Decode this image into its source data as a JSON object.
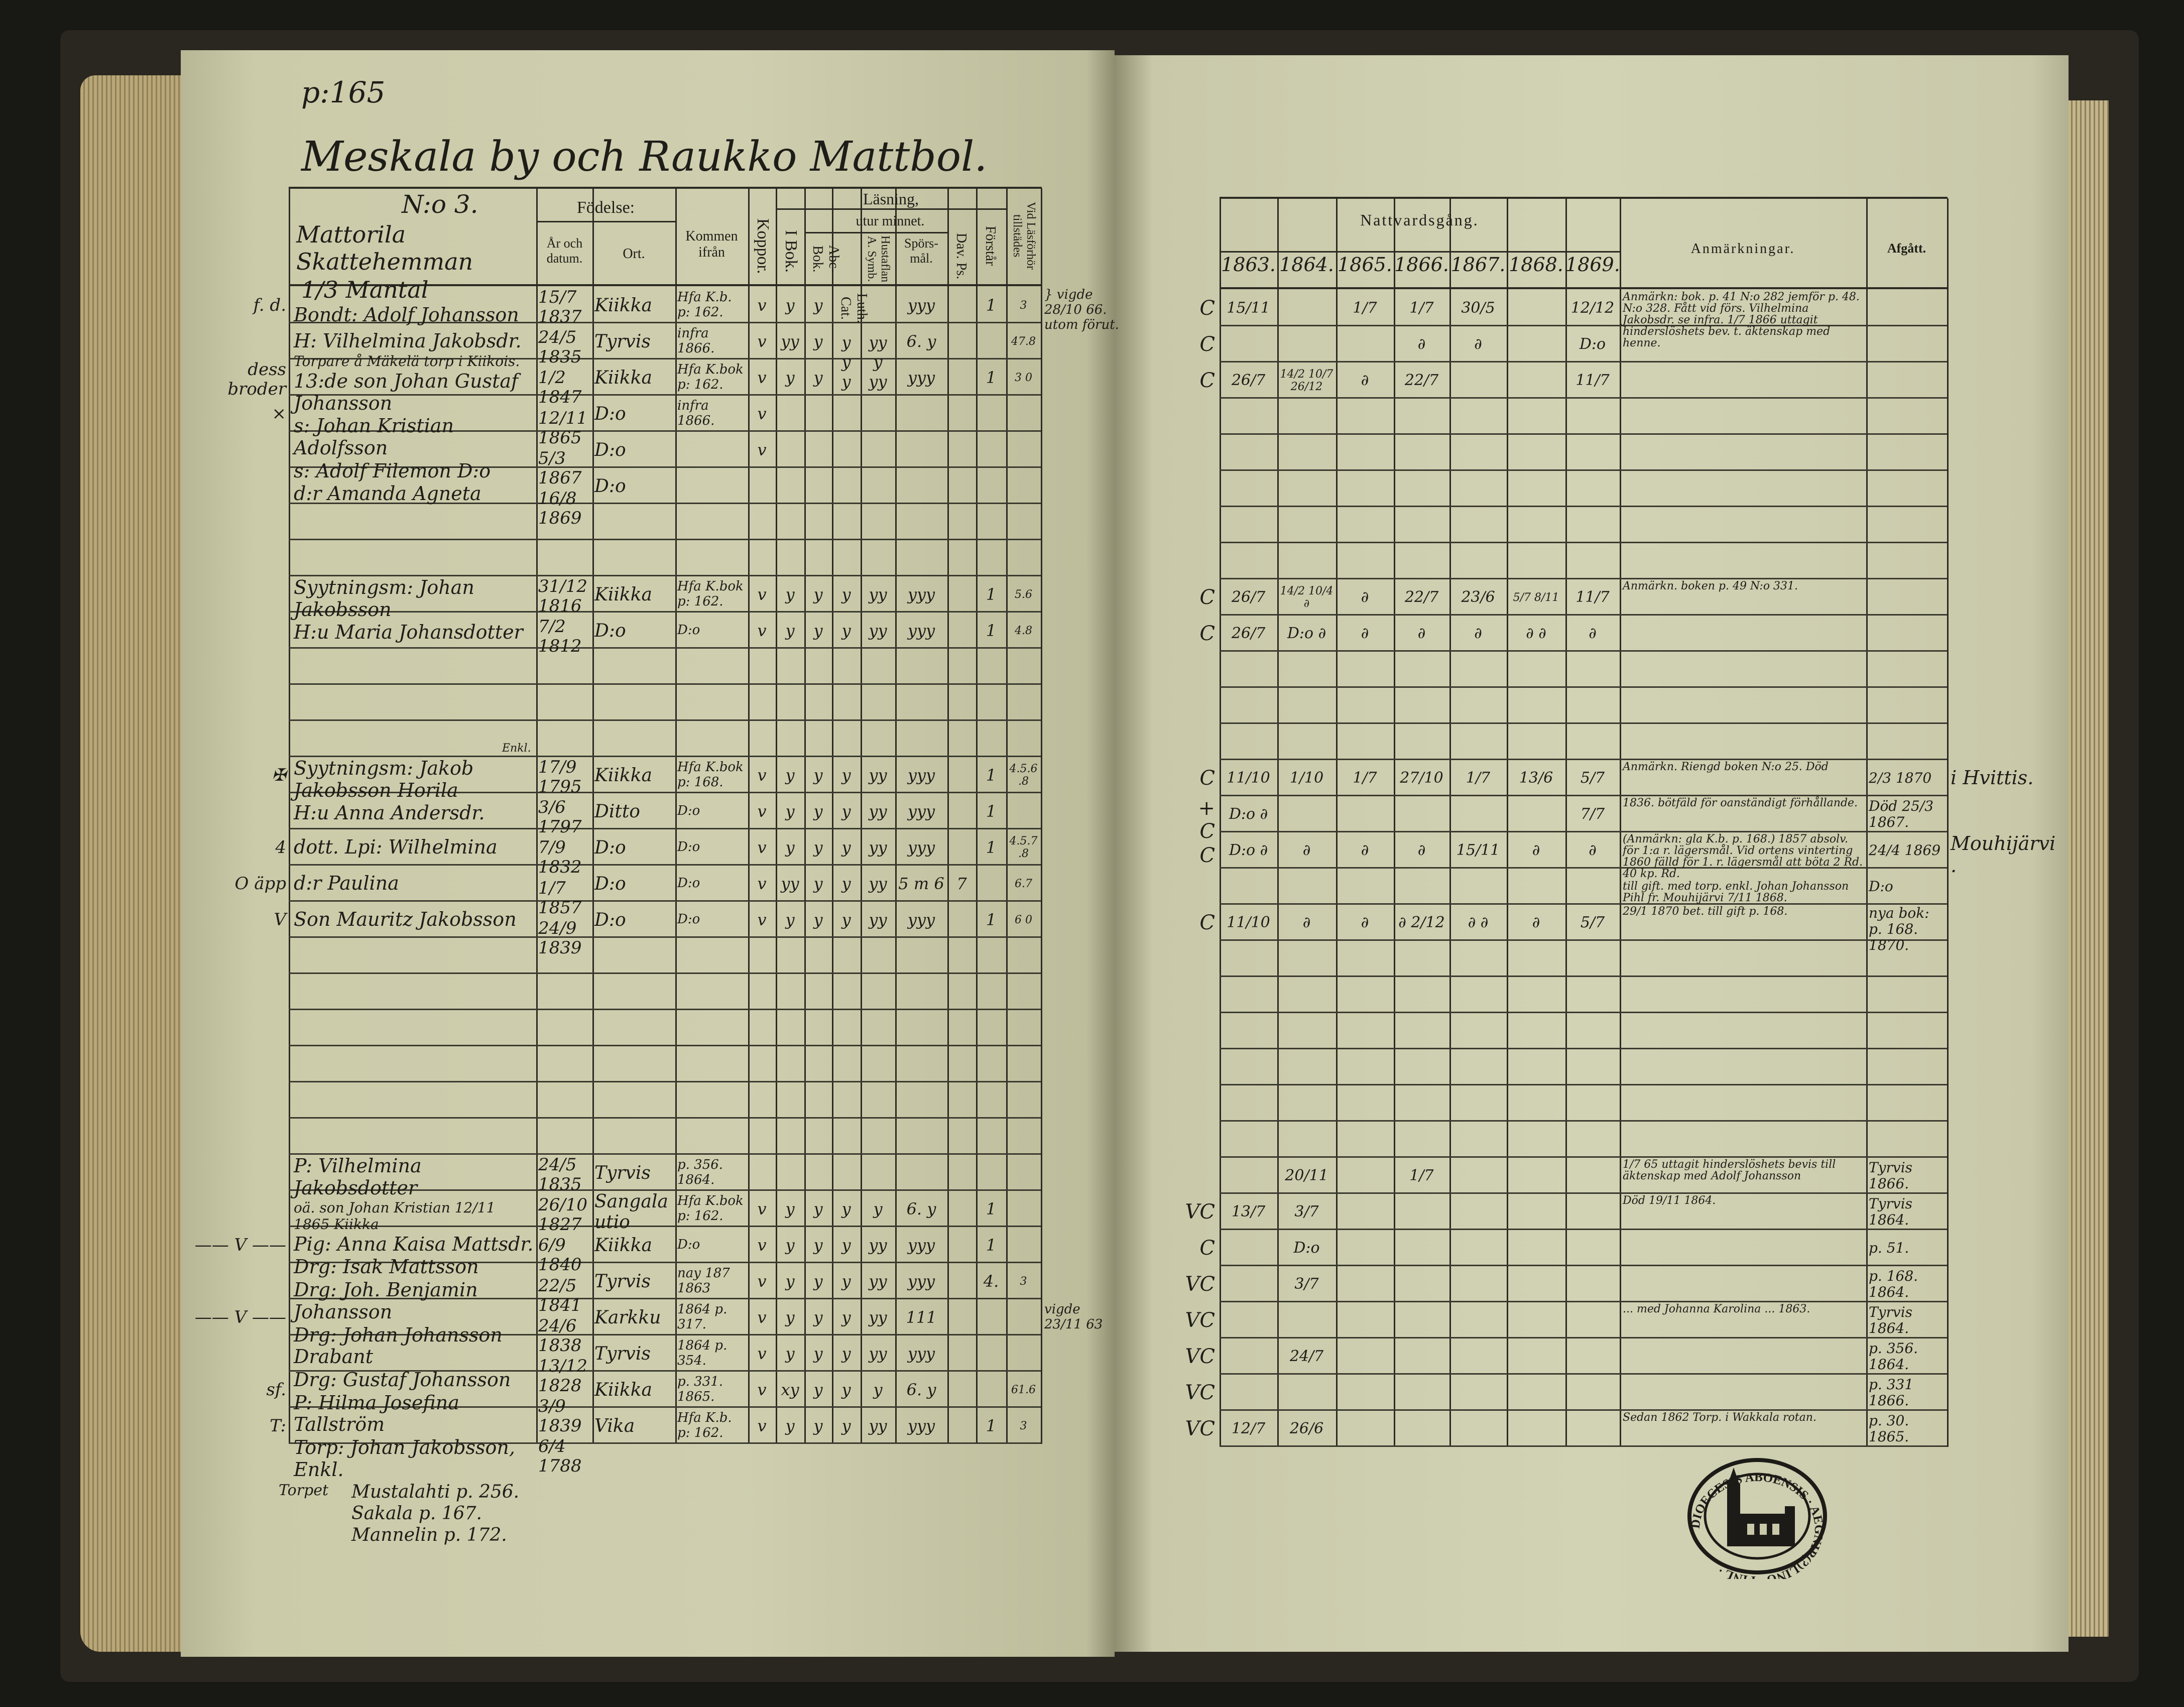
{
  "left_page": {
    "page_ref": "p:165",
    "title": "Meskala by och Raukko Mattbol.",
    "household_no": "N:o 3.",
    "farm": "Mattorila Skattehemman",
    "mantal": "1/3 Mantal",
    "headers": {
      "birth": "Födelse:",
      "year_date": "År och datum.",
      "place": "Ort.",
      "came_from": "Kommen ifrån",
      "smallpox": "Koppor.",
      "reading": "Läsning,",
      "from_memory": "utur minnet.",
      "i_bok": "I Bok.",
      "abc": "Abc-Bok.",
      "luth": "Luth. Cat.",
      "hustaflan": "Hustaflan A. Symb.",
      "sporsmal": "Spörs-mål.",
      "dav": "Dav. Ps.",
      "forstar": "Förstår",
      "vid_las": "Vid Läsförhör tillstädes"
    },
    "footer_note": [
      "Torpet",
      "Mustalahti p. 256.",
      "Sakala p. 167.",
      "Mannelin p. 172."
    ]
  },
  "right_page": {
    "headers": {
      "communion": "Nattvardsgång.",
      "years": [
        "1863.",
        "1864.",
        "1865.",
        "1866.",
        "1867.",
        "1868.",
        "1869."
      ],
      "remarks": "Anmärkningar.",
      "departed": "Afgått."
    },
    "stamp_text": "DIOECESIS ABOENSIS · AEGNIP(?)LINO · FINL ·"
  },
  "rows": [
    {
      "m": "f. d.",
      "n": "Bondt: Adolf Johansson",
      "d": "15/7 1837",
      "o": "Kiikka",
      "f": "Hfa K.b. p: 162.",
      "r": [
        "v",
        "y",
        "y",
        "y",
        "yy",
        "yyy",
        "",
        "1",
        "3"
      ],
      "x": "} vigde 28/10 66. utom förut.",
      "lm": "C",
      "c": [
        "15/11",
        "",
        "1/7",
        "1/7",
        "30/5",
        "",
        "12/12"
      ],
      "a": "Anmärkn: bok. p. 41 N:o 282 jemför p. 48. N:o 328. Fått vid förs. Vilhelmina Jakobsdr. se infra. 1/7 1866 uttagit hinderslöshets bev. t. äktenskap med henne."
    },
    {
      "n": "H: Vilhelmina Jakobsdr.",
      "d": "24/5 1835",
      "o": "Tyrvis",
      "f": "infra 1866.",
      "r": [
        "v",
        "yy",
        "y",
        "y",
        "y",
        "6. y",
        "",
        "",
        "47.8"
      ],
      "lm": "C",
      "c": [
        "",
        "",
        "",
        "∂",
        "∂",
        "",
        "D:o"
      ]
    },
    {
      "m": "dess broder",
      "t": "Torpare å Mäkelä torp i Kiikois.",
      "n": "13:de son Johan Gustaf Johansson",
      "d": "1/2 1847",
      "o": "Kiikka",
      "f": "Hfa K.bok p: 162.",
      "r": [
        "v",
        "y",
        "y",
        "y",
        "yy",
        "yyy",
        "",
        "1",
        "3 0"
      ],
      "lm": "C",
      "c": [
        "26/7",
        "14/2 10/7 26/12",
        "∂",
        "22/7",
        "",
        "",
        "11/7"
      ]
    },
    {
      "m": "×",
      "n": "s: Johan Kristian Adolfsson",
      "d": "12/11 1865",
      "o": "D:o",
      "f": "infra 1866.",
      "r": [
        "v",
        "",
        "",
        "",
        "",
        "",
        "",
        "",
        ""
      ]
    },
    {
      "n": "s: Adolf Filemon D:o",
      "d": "5/3 1867",
      "o": "D:o",
      "r": [
        "v",
        "",
        "",
        "",
        "",
        "",
        "",
        "",
        ""
      ]
    },
    {
      "n": "d:r Amanda Agneta",
      "d": "16/8 1869",
      "o": "D:o"
    },
    {},
    {},
    {
      "n": "Syytningsm: Johan Jakobsson",
      "d": "31/12 1816",
      "o": "Kiikka",
      "f": "Hfa K.bok p: 162.",
      "r": [
        "v",
        "y",
        "y",
        "y",
        "yy",
        "yyy",
        "",
        "1",
        "5.6"
      ],
      "lm": "C",
      "c": [
        "26/7",
        "14/2 10/4 ∂",
        "∂",
        "22/7",
        "23/6",
        "5/7 8/11",
        "11/7"
      ],
      "a": "Anmärkn. boken p. 49 N:o 331."
    },
    {
      "n": "H:u Maria Johansdotter",
      "d": "7/2 1812",
      "o": "D:o",
      "f": "D:o",
      "r": [
        "v",
        "y",
        "y",
        "y",
        "yy",
        "yyy",
        "",
        "1",
        "4.8"
      ],
      "lm": "C",
      "c": [
        "26/7",
        "D:o ∂",
        "∂",
        "∂",
        "∂",
        "∂ ∂",
        "∂"
      ]
    },
    {},
    {},
    {},
    {
      "m": "✠",
      "n": "Syytningsm: Jakob Jakobsson Horila",
      "sup": "Enkl.",
      "d": "17/9 1795",
      "o": "Kiikka",
      "f": "Hfa K.bok p: 168.",
      "r": [
        "v",
        "y",
        "y",
        "y",
        "yy",
        "yyy",
        "",
        "1",
        "4.5.6.8"
      ],
      "lm": "C",
      "c": [
        "11/10",
        "1/10",
        "1/7",
        "27/10",
        "1/7",
        "13/6",
        "5/7"
      ],
      "a": "Anmärkn. Riengd boken N:o 25. Död",
      "g": "2/3 1870",
      "x2": "i Hvittis."
    },
    {
      "n": "H:u Anna Andersdr.",
      "d": "3/6 1797",
      "o": "Ditto",
      "f": "D:o",
      "r": [
        "v",
        "y",
        "y",
        "y",
        "yy",
        "yyy",
        "",
        "1",
        ""
      ],
      "lm": "+C",
      "c": [
        "D:o ∂",
        "",
        "",
        "",
        "",
        "",
        "7/7"
      ],
      "a": "1836. bötfäld för oanständigt förhållande.",
      "g": "Död 25/3 1867."
    },
    {
      "m": "4",
      "n": "dott. Lpi: Wilhelmina",
      "d": "7/9 1832",
      "o": "D:o",
      "f": "D:o",
      "r": [
        "v",
        "y",
        "y",
        "y",
        "yy",
        "yyy",
        "",
        "1",
        "4.5.7.8"
      ],
      "lm": "C",
      "c": [
        "D:o ∂",
        "∂",
        "∂",
        "∂",
        "15/11",
        "∂",
        "∂"
      ],
      "a": "(Anmärkn: gla K.b. p. 168.) 1857 absolv. för 1:a r. lägersmål. Vid ortens vinterting 1860 fälld för 1. r. lägersmål att böta 2 Rd. 40 kp. Rd.",
      "g": "24/4 1869",
      "x2": "Mouhijärvi."
    },
    {
      "m": "O äpp",
      "n": "d:r Paulina",
      "d": "1/7 1857",
      "o": "D:o",
      "f": "D:o",
      "r": [
        "v",
        "yy",
        "y",
        "y",
        "yy",
        "5 m 6",
        "7",
        "",
        "6.7"
      ],
      "a": "till gift. med torp. enkl. Johan Johansson Pihl fr. Mouhijärvi 7/11 1868.",
      "g": "D:o"
    },
    {
      "m": "V",
      "n": "Son Mauritz Jakobsson",
      "d": "24/9 1839",
      "o": "D:o",
      "f": "D:o",
      "r": [
        "v",
        "y",
        "y",
        "y",
        "yy",
        "yyy",
        "",
        "1",
        "6 0"
      ],
      "lm": "C",
      "c": [
        "11/10",
        "∂",
        "∂",
        "∂ 2/12",
        "∂ ∂",
        "∂",
        "5/7"
      ],
      "a": "29/1 1870 bet. till gift p. 168.",
      "g": "nya bok: p. 168. 1870."
    },
    {},
    {},
    {},
    {},
    {},
    {},
    {
      "n": "P: Vilhelmina Jakobsdotter",
      "d": "24/5 1835",
      "o": "Tyrvis",
      "f": "p. 356. 1864.",
      "c": [
        "",
        "20/11",
        "",
        "1/7",
        "",
        "",
        ""
      ],
      "a": "1/7 65 uttagit hinderslöshets bevis till äktenskap med Adolf Johansson",
      "g": "Tyrvis 1866."
    },
    {
      "t": "oä. son Johan Kristian 12/11 1865 Kiikka",
      "n": "Pig: Anna Kaisa Mattsdr.",
      "d": "26/10 1827",
      "o": "Sangalautio",
      "f": "Hfa K.bok p: 162.",
      "r": [
        "v",
        "y",
        "y",
        "y",
        "y",
        "6. y",
        "",
        "1",
        ""
      ],
      "lm": "VC",
      "c": [
        "13/7",
        "3/7",
        "",
        "",
        "",
        "",
        ""
      ],
      "a": "Död 19/11 1864.",
      "g": "Tyrvis 1864."
    },
    {
      "m": "—— V ——",
      "n": "Drg: Isak Mattsson",
      "d": "6/9 1840",
      "o": "Kiikka",
      "f": "D:o",
      "r": [
        "v",
        "y",
        "y",
        "y",
        "yy",
        "yyy",
        "",
        "1",
        ""
      ],
      "lm": "C",
      "c": [
        "",
        "D:o",
        "",
        "",
        "",
        "",
        ""
      ],
      "g": "p. 51."
    },
    {
      "n": "Drg: Joh. Benjamin Johansson",
      "d": "22/5 1841",
      "o": "Tyrvis",
      "f": "nay 187 1863",
      "r": [
        "v",
        "y",
        "y",
        "y",
        "yy",
        "yyy",
        "",
        "4.",
        "3"
      ],
      "lm": "VC",
      "c": [
        "",
        "3/7",
        "",
        "",
        "",
        "",
        ""
      ],
      "g": "p. 168. 1864."
    },
    {
      "m": "—— V ——",
      "n": "Drg: Johan Johansson Drabant",
      "d": "24/6 1838",
      "o": "Karkku",
      "f": "1864 p. 317.",
      "r": [
        "v",
        "y",
        "y",
        "y",
        "yy",
        "111",
        "",
        "",
        ""
      ],
      "x": "vigde 23/11 63",
      "lm": "VC",
      "a": "... med Johanna Karolina ... 1863.",
      "g": "Tyrvis 1864."
    },
    {
      "n": "Drg: Gustaf Johansson",
      "d": "13/12 1828",
      "o": "Tyrvis",
      "f": "1864 p. 354.",
      "r": [
        "v",
        "y",
        "y",
        "y",
        "yy",
        "yyy",
        "",
        "",
        ""
      ],
      "lm": "VC",
      "c": [
        "",
        "24/7",
        "",
        "",
        "",
        "",
        ""
      ],
      "g": "p. 356. 1864."
    },
    {
      "m": "sf.",
      "n": "P: Hilma Josefina Tallström",
      "d": "3/9 1839",
      "o": "Kiikka",
      "f": "p. 331. 1865.",
      "r": [
        "v",
        "xy",
        "y",
        "y",
        "y",
        "6. y",
        "",
        "",
        "61.6"
      ],
      "lm": "VC",
      "g": "p. 331 1866."
    },
    {
      "m": "T:",
      "n": "Torp: Johan Jakobsson, Enkl.",
      "d": "6/4 1788",
      "o": "Vika",
      "f": "Hfa K.b. p: 162.",
      "r": [
        "v",
        "y",
        "y",
        "y",
        "yy",
        "yyy",
        "",
        "1",
        "3"
      ],
      "lm": "VC",
      "c": [
        "12/7",
        "26/6",
        "",
        "",
        "",
        "",
        ""
      ],
      "a": "Sedan 1862 Torp. i Wakkala rotan.",
      "g": "p. 30. 1865."
    }
  ]
}
